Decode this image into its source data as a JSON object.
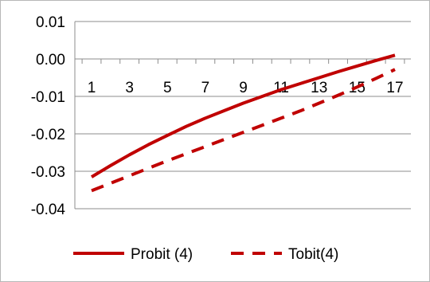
{
  "chart_data": {
    "type": "line",
    "title": "",
    "xlabel": "",
    "ylabel": "",
    "x": [
      1,
      2,
      3,
      4,
      5,
      6,
      7,
      8,
      9,
      10,
      11,
      12,
      13,
      14,
      15,
      16,
      17
    ],
    "x_tick_labels": [
      "1",
      "3",
      "5",
      "7",
      "9",
      "11",
      "13",
      "15",
      "17"
    ],
    "y_tick_labels": [
      "0.01",
      "0.00",
      "-0.01",
      "-0.02",
      "-0.03",
      "-0.04"
    ],
    "ylim": [
      -0.04,
      0.01
    ],
    "grid": true,
    "legend_position": "bottom",
    "series": [
      {
        "name": "Probit (4)",
        "style": "solid",
        "color": "#c00000",
        "values": [
          -0.0315,
          -0.0285,
          -0.0256,
          -0.0229,
          -0.0204,
          -0.018,
          -0.0158,
          -0.0138,
          -0.0118,
          -0.01,
          -0.0082,
          -0.0066,
          -0.005,
          -0.0034,
          -0.0019,
          -0.0004,
          0.001
        ]
      },
      {
        "name": "Tobit(4)",
        "style": "dashed",
        "color": "#c00000",
        "values": [
          -0.0352,
          -0.0332,
          -0.0312,
          -0.0292,
          -0.0272,
          -0.0253,
          -0.0234,
          -0.0215,
          -0.0196,
          -0.0177,
          -0.0158,
          -0.0139,
          -0.0118,
          -0.0097,
          -0.0075,
          -0.0052,
          -0.0028
        ]
      }
    ]
  }
}
